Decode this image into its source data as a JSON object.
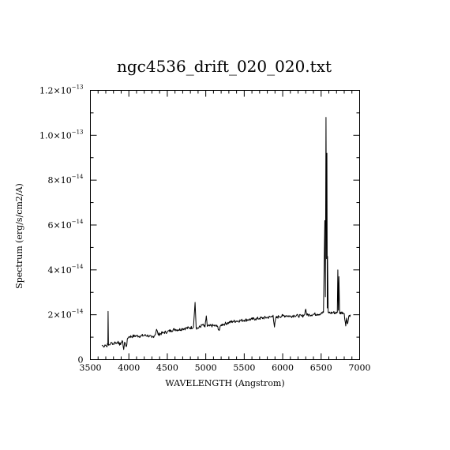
{
  "chart_data": {
    "type": "line",
    "title": "ngc4536_drift_020_020.txt",
    "xlabel": "WAVELENGTH (Angstrom)",
    "ylabel": "Spectrum (erg/s/cm2/A)",
    "xlim": [
      3500,
      7000
    ],
    "ylim": [
      0,
      1.2e-13
    ],
    "x_ticks": [
      {
        "value": 3500,
        "label": "3500"
      },
      {
        "value": 4000,
        "label": "4000"
      },
      {
        "value": 4500,
        "label": "4500"
      },
      {
        "value": 5000,
        "label": "5000"
      },
      {
        "value": 5500,
        "label": "5500"
      },
      {
        "value": 6000,
        "label": "6000"
      },
      {
        "value": 6500,
        "label": "6500"
      },
      {
        "value": 7000,
        "label": "7000"
      }
    ],
    "y_ticks": [
      {
        "value": 0,
        "mantissa": "0",
        "exponent": ""
      },
      {
        "value": 2e-14,
        "mantissa": "2×10",
        "exponent": "−14"
      },
      {
        "value": 4e-14,
        "mantissa": "4×10",
        "exponent": "−14"
      },
      {
        "value": 6e-14,
        "mantissa": "6×10",
        "exponent": "−14"
      },
      {
        "value": 8e-14,
        "mantissa": "8×10",
        "exponent": "−14"
      },
      {
        "value": 1e-13,
        "mantissa": "1.0×10",
        "exponent": "−13"
      },
      {
        "value": 1.2e-13,
        "mantissa": "1.2×10",
        "exponent": "−13"
      }
    ],
    "grid": false,
    "series": [
      {
        "points": [
          [
            3650,
            6.5e-15
          ],
          [
            3670,
            5.8e-15
          ],
          [
            3690,
            6.6e-15
          ],
          [
            3710,
            6e-15
          ],
          [
            3727,
            6.8e-15
          ],
          [
            3730,
            2.15e-14
          ],
          [
            3735,
            6.4e-15
          ],
          [
            3760,
            7e-15
          ],
          [
            3780,
            7.6e-15
          ],
          [
            3800,
            6.8e-15
          ],
          [
            3820,
            7.9e-15
          ],
          [
            3840,
            7.2e-15
          ],
          [
            3860,
            8.2e-15
          ],
          [
            3880,
            6.4e-15
          ],
          [
            3900,
            7.6e-15
          ],
          [
            3920,
            8e-15
          ],
          [
            3933,
            4.5e-15
          ],
          [
            3945,
            7.8e-15
          ],
          [
            3968,
            5.8e-15
          ],
          [
            3985,
            9.6e-15
          ],
          [
            4000,
            1.02e-14
          ],
          [
            4050,
            1.04e-14
          ],
          [
            4100,
            1.06e-14
          ],
          [
            4150,
            1.05e-14
          ],
          [
            4200,
            1.08e-14
          ],
          [
            4250,
            1.07e-14
          ],
          [
            4300,
            9.8e-15
          ],
          [
            4340,
            1.1e-14
          ],
          [
            4360,
            1.35e-14
          ],
          [
            4380,
            1.12e-14
          ],
          [
            4450,
            1.2e-14
          ],
          [
            4500,
            1.24e-14
          ],
          [
            4550,
            1.3e-14
          ],
          [
            4600,
            1.35e-14
          ],
          [
            4650,
            1.33e-14
          ],
          [
            4700,
            1.38e-14
          ],
          [
            4750,
            1.4e-14
          ],
          [
            4800,
            1.42e-14
          ],
          [
            4840,
            1.45e-14
          ],
          [
            4861,
            2.55e-14
          ],
          [
            4875,
            1.42e-14
          ],
          [
            4900,
            1.4e-14
          ],
          [
            4959,
            1.55e-14
          ],
          [
            4990,
            1.45e-14
          ],
          [
            5007,
            1.95e-14
          ],
          [
            5020,
            1.48e-14
          ],
          [
            5050,
            1.5e-14
          ],
          [
            5100,
            1.52e-14
          ],
          [
            5150,
            1.48e-14
          ],
          [
            5175,
            1.3e-14
          ],
          [
            5200,
            1.55e-14
          ],
          [
            5250,
            1.6e-14
          ],
          [
            5300,
            1.65e-14
          ],
          [
            5350,
            1.7e-14
          ],
          [
            5400,
            1.72e-14
          ],
          [
            5450,
            1.74e-14
          ],
          [
            5500,
            1.76e-14
          ],
          [
            5550,
            1.78e-14
          ],
          [
            5600,
            1.8e-14
          ],
          [
            5650,
            1.82e-14
          ],
          [
            5700,
            1.84e-14
          ],
          [
            5750,
            1.86e-14
          ],
          [
            5800,
            1.88e-14
          ],
          [
            5850,
            1.9e-14
          ],
          [
            5875,
            1.98e-14
          ],
          [
            5893,
            1.45e-14
          ],
          [
            5910,
            1.85e-14
          ],
          [
            5950,
            1.92e-14
          ],
          [
            6000,
            1.95e-14
          ],
          [
            6050,
            1.96e-14
          ],
          [
            6100,
            1.93e-14
          ],
          [
            6150,
            1.97e-14
          ],
          [
            6200,
            1.95e-14
          ],
          [
            6250,
            1.94e-14
          ],
          [
            6280,
            1.98e-14
          ],
          [
            6300,
            2.25e-14
          ],
          [
            6315,
            1.98e-14
          ],
          [
            6350,
            2e-14
          ],
          [
            6400,
            2.02e-14
          ],
          [
            6450,
            2.03e-14
          ],
          [
            6500,
            2.05e-14
          ],
          [
            6530,
            2.1e-14
          ],
          [
            6548,
            6.2e-14
          ],
          [
            6555,
            2.8e-14
          ],
          [
            6563,
            1.08e-13
          ],
          [
            6570,
            4.5e-14
          ],
          [
            6575,
            9.2e-14
          ],
          [
            6580,
            2.3e-14
          ],
          [
            6583,
            4.6e-14
          ],
          [
            6592,
            2.1e-14
          ],
          [
            6620,
            2.08e-14
          ],
          [
            6660,
            2.1e-14
          ],
          [
            6700,
            2.08e-14
          ],
          [
            6710,
            2.1e-14
          ],
          [
            6717,
            4e-14
          ],
          [
            6724,
            2.2e-14
          ],
          [
            6731,
            3.7e-14
          ],
          [
            6740,
            2.08e-14
          ],
          [
            6780,
            2.1e-14
          ],
          [
            6800,
            2.05e-14
          ],
          [
            6820,
            1.5e-14
          ],
          [
            6830,
            1.85e-14
          ],
          [
            6845,
            1.6e-14
          ],
          [
            6860,
            1.95e-14
          ],
          [
            6880,
            2e-14
          ]
        ]
      }
    ]
  }
}
